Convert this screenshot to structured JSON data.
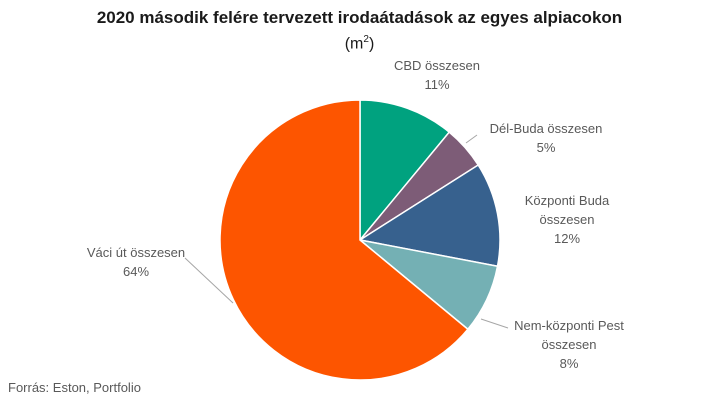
{
  "chart_data": {
    "type": "pie",
    "title": "2020 második felére tervezett irodaátadások az egyes alpiacokon",
    "subtitle_main": "(m",
    "subtitle_sup": "2",
    "subtitle_end": ")",
    "slices": [
      {
        "label_lines": [
          "CBD összesen"
        ],
        "pct_label": "11%",
        "value": 11,
        "color": "#00a27f"
      },
      {
        "label_lines": [
          "Dél-Buda összesen"
        ],
        "pct_label": "5%",
        "value": 5,
        "color": "#7d5c77"
      },
      {
        "label_lines": [
          "Központi Buda",
          "összesen"
        ],
        "pct_label": "12%",
        "value": 12,
        "color": "#37618e"
      },
      {
        "label_lines": [
          "Nem-központi Pest",
          "összesen"
        ],
        "pct_label": "8%",
        "value": 8,
        "color": "#74b0b4"
      },
      {
        "label_lines": [
          "Váci út összesen"
        ],
        "pct_label": "64%",
        "value": 64,
        "color": "#fd5500"
      }
    ]
  },
  "footer": {
    "source": "Forrás: Eston, Portfolio"
  }
}
